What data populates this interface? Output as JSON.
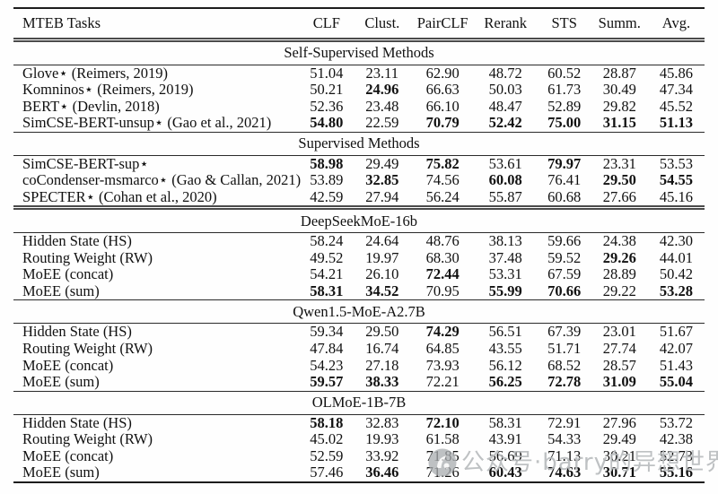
{
  "table": {
    "header": {
      "label": "MTEB Tasks",
      "columns": [
        "CLF",
        "Clust.",
        "PairCLF",
        "Rerank",
        "STS",
        "Summ.",
        "Avg."
      ]
    },
    "sections": [
      {
        "title": "Self-Supervised Methods",
        "rows": [
          {
            "label": "Glove⋆ (Reimers, 2019)",
            "values": [
              "51.04",
              "23.11",
              "62.90",
              "48.72",
              "60.52",
              "28.87",
              "45.86"
            ],
            "bold": []
          },
          {
            "label": "Komninos⋆ (Reimers, 2019)",
            "values": [
              "50.21",
              "24.96",
              "66.63",
              "50.03",
              "61.73",
              "30.49",
              "47.34"
            ],
            "bold": [
              1
            ]
          },
          {
            "label": "BERT⋆ (Devlin, 2018)",
            "values": [
              "52.36",
              "23.48",
              "66.10",
              "48.47",
              "52.89",
              "29.82",
              "45.52"
            ],
            "bold": []
          },
          {
            "label": "SimCSE-BERT-unsup⋆ (Gao et al., 2021)",
            "values": [
              "54.80",
              "22.59",
              "70.79",
              "52.42",
              "75.00",
              "31.15",
              "51.13"
            ],
            "bold": [
              0,
              2,
              3,
              4,
              5,
              6
            ]
          }
        ]
      },
      {
        "title": "Supervised Methods",
        "rows": [
          {
            "label": "SimCSE-BERT-sup⋆",
            "values": [
              "58.98",
              "29.49",
              "75.82",
              "53.61",
              "79.97",
              "23.31",
              "53.53"
            ],
            "bold": [
              0,
              2,
              4
            ]
          },
          {
            "label": "coCondenser-msmarco⋆ (Gao & Callan, 2021)",
            "values": [
              "53.89",
              "32.85",
              "74.56",
              "60.08",
              "76.41",
              "29.50",
              "54.55"
            ],
            "bold": [
              1,
              3,
              5,
              6
            ]
          },
          {
            "label": "SPECTER⋆ (Cohan et al., 2020)",
            "values": [
              "42.59",
              "27.94",
              "56.24",
              "55.87",
              "60.68",
              "27.66",
              "45.16"
            ],
            "bold": []
          }
        ]
      },
      {
        "title": "DeepSeekMoE-16b",
        "rows": [
          {
            "label": "Hidden State (HS)",
            "values": [
              "58.24",
              "24.64",
              "48.76",
              "38.13",
              "59.66",
              "24.38",
              "42.30"
            ],
            "bold": []
          },
          {
            "label": "Routing Weight (RW)",
            "values": [
              "49.52",
              "19.97",
              "68.30",
              "37.48",
              "59.52",
              "29.26",
              "44.01"
            ],
            "bold": [
              5
            ]
          },
          {
            "label": "MoEE (concat)",
            "values": [
              "54.21",
              "26.10",
              "72.44",
              "53.31",
              "67.59",
              "28.89",
              "50.42"
            ],
            "bold": [
              2
            ]
          },
          {
            "label": "MoEE (sum)",
            "values": [
              "58.31",
              "34.52",
              "70.95",
              "55.99",
              "70.66",
              "29.22",
              "53.28"
            ],
            "bold": [
              0,
              1,
              3,
              4,
              6
            ]
          }
        ]
      },
      {
        "title": "Qwen1.5-MoE-A2.7B",
        "rows": [
          {
            "label": "Hidden State (HS)",
            "values": [
              "59.34",
              "29.50",
              "74.29",
              "56.51",
              "67.39",
              "23.01",
              "51.67"
            ],
            "bold": [
              2
            ]
          },
          {
            "label": "Routing Weight (RW)",
            "values": [
              "47.84",
              "16.74",
              "64.85",
              "43.55",
              "51.71",
              "27.74",
              "42.07"
            ],
            "bold": []
          },
          {
            "label": "MoEE (concat)",
            "values": [
              "54.23",
              "27.18",
              "73.93",
              "56.12",
              "68.52",
              "28.57",
              "51.43"
            ],
            "bold": []
          },
          {
            "label": "MoEE (sum)",
            "values": [
              "59.57",
              "38.33",
              "72.21",
              "56.25",
              "72.78",
              "31.09",
              "55.04"
            ],
            "bold": [
              0,
              1,
              3,
              4,
              5,
              6
            ]
          }
        ]
      },
      {
        "title": "OLMoE-1B-7B",
        "rows": [
          {
            "label": "Hidden State (HS)",
            "values": [
              "58.18",
              "32.83",
              "72.10",
              "58.31",
              "72.91",
              "27.96",
              "53.72"
            ],
            "bold": [
              0,
              2
            ]
          },
          {
            "label": "Routing Weight (RW)",
            "values": [
              "45.02",
              "19.93",
              "61.58",
              "43.91",
              "54.33",
              "29.49",
              "42.38"
            ],
            "bold": []
          },
          {
            "label": "MoEE (concat)",
            "values": [
              "52.59",
              "33.92",
              "71.85",
              "56.69",
              "71.13",
              "30.21",
              "52.73"
            ],
            "bold": []
          },
          {
            "label": "MoEE (sum)",
            "values": [
              "57.46",
              "36.46",
              "71.26",
              "60.43",
              "74.63",
              "30.71",
              "55.16"
            ],
            "bold": [
              1,
              3,
              4,
              5,
              6
            ]
          }
        ]
      }
    ]
  },
  "watermark": {
    "text": "公众号·barry的异想世界",
    "color": "#b8bbbd"
  },
  "colors": {
    "text": "#111111",
    "rule": "#1c1c1c",
    "background": "#fefefe"
  }
}
